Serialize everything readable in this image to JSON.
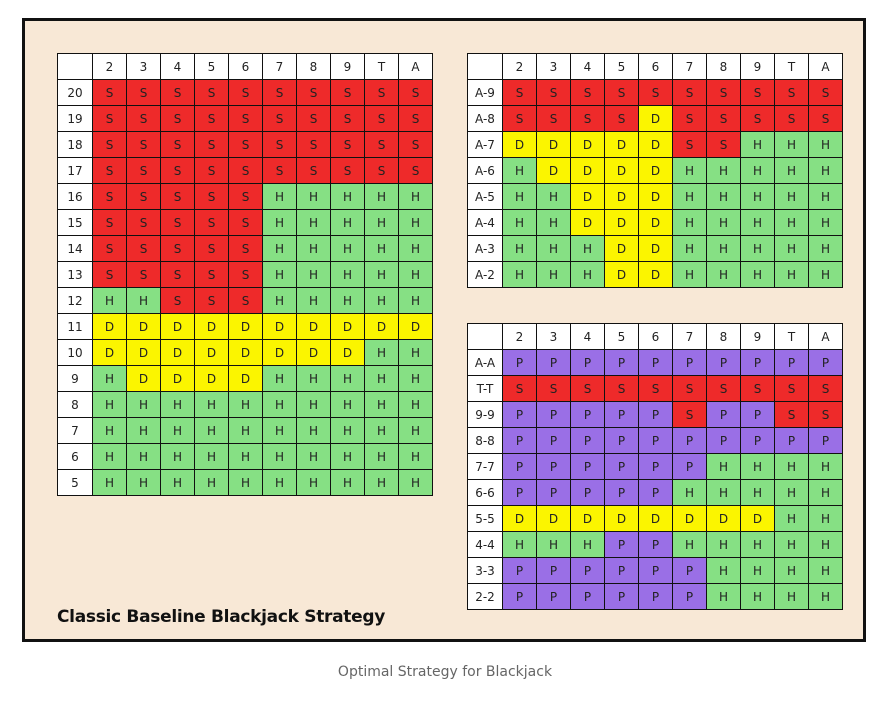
{
  "title": "Classic Baseline Blackjack Strategy",
  "caption": "Optimal Strategy for Blackjack",
  "colors": {
    "S": "#ee2a2a",
    "H": "#86e084",
    "D": "#fbf500",
    "P": "#9a6fe6"
  },
  "dealer_cards": [
    "2",
    "3",
    "4",
    "5",
    "6",
    "7",
    "8",
    "9",
    "T",
    "A"
  ],
  "hard_totals": [
    {
      "hand": "20",
      "actions": [
        "S",
        "S",
        "S",
        "S",
        "S",
        "S",
        "S",
        "S",
        "S",
        "S"
      ]
    },
    {
      "hand": "19",
      "actions": [
        "S",
        "S",
        "S",
        "S",
        "S",
        "S",
        "S",
        "S",
        "S",
        "S"
      ]
    },
    {
      "hand": "18",
      "actions": [
        "S",
        "S",
        "S",
        "S",
        "S",
        "S",
        "S",
        "S",
        "S",
        "S"
      ]
    },
    {
      "hand": "17",
      "actions": [
        "S",
        "S",
        "S",
        "S",
        "S",
        "S",
        "S",
        "S",
        "S",
        "S"
      ]
    },
    {
      "hand": "16",
      "actions": [
        "S",
        "S",
        "S",
        "S",
        "S",
        "H",
        "H",
        "H",
        "H",
        "H"
      ]
    },
    {
      "hand": "15",
      "actions": [
        "S",
        "S",
        "S",
        "S",
        "S",
        "H",
        "H",
        "H",
        "H",
        "H"
      ]
    },
    {
      "hand": "14",
      "actions": [
        "S",
        "S",
        "S",
        "S",
        "S",
        "H",
        "H",
        "H",
        "H",
        "H"
      ]
    },
    {
      "hand": "13",
      "actions": [
        "S",
        "S",
        "S",
        "S",
        "S",
        "H",
        "H",
        "H",
        "H",
        "H"
      ]
    },
    {
      "hand": "12",
      "actions": [
        "H",
        "H",
        "S",
        "S",
        "S",
        "H",
        "H",
        "H",
        "H",
        "H"
      ]
    },
    {
      "hand": "11",
      "actions": [
        "D",
        "D",
        "D",
        "D",
        "D",
        "D",
        "D",
        "D",
        "D",
        "D"
      ]
    },
    {
      "hand": "10",
      "actions": [
        "D",
        "D",
        "D",
        "D",
        "D",
        "D",
        "D",
        "D",
        "H",
        "H"
      ]
    },
    {
      "hand": "9",
      "actions": [
        "H",
        "D",
        "D",
        "D",
        "D",
        "H",
        "H",
        "H",
        "H",
        "H"
      ]
    },
    {
      "hand": "8",
      "actions": [
        "H",
        "H",
        "H",
        "H",
        "H",
        "H",
        "H",
        "H",
        "H",
        "H"
      ]
    },
    {
      "hand": "7",
      "actions": [
        "H",
        "H",
        "H",
        "H",
        "H",
        "H",
        "H",
        "H",
        "H",
        "H"
      ]
    },
    {
      "hand": "6",
      "actions": [
        "H",
        "H",
        "H",
        "H",
        "H",
        "H",
        "H",
        "H",
        "H",
        "H"
      ]
    },
    {
      "hand": "5",
      "actions": [
        "H",
        "H",
        "H",
        "H",
        "H",
        "H",
        "H",
        "H",
        "H",
        "H"
      ]
    }
  ],
  "soft_totals": [
    {
      "hand": "A-9",
      "actions": [
        "S",
        "S",
        "S",
        "S",
        "S",
        "S",
        "S",
        "S",
        "S",
        "S"
      ]
    },
    {
      "hand": "A-8",
      "actions": [
        "S",
        "S",
        "S",
        "S",
        "D",
        "S",
        "S",
        "S",
        "S",
        "S"
      ]
    },
    {
      "hand": "A-7",
      "actions": [
        "D",
        "D",
        "D",
        "D",
        "D",
        "S",
        "S",
        "H",
        "H",
        "H"
      ]
    },
    {
      "hand": "A-6",
      "actions": [
        "H",
        "D",
        "D",
        "D",
        "D",
        "H",
        "H",
        "H",
        "H",
        "H"
      ]
    },
    {
      "hand": "A-5",
      "actions": [
        "H",
        "H",
        "D",
        "D",
        "D",
        "H",
        "H",
        "H",
        "H",
        "H"
      ]
    },
    {
      "hand": "A-4",
      "actions": [
        "H",
        "H",
        "D",
        "D",
        "D",
        "H",
        "H",
        "H",
        "H",
        "H"
      ]
    },
    {
      "hand": "A-3",
      "actions": [
        "H",
        "H",
        "H",
        "D",
        "D",
        "H",
        "H",
        "H",
        "H",
        "H"
      ]
    },
    {
      "hand": "A-2",
      "actions": [
        "H",
        "H",
        "H",
        "D",
        "D",
        "H",
        "H",
        "H",
        "H",
        "H"
      ]
    }
  ],
  "pairs": [
    {
      "hand": "A-A",
      "actions": [
        "P",
        "P",
        "P",
        "P",
        "P",
        "P",
        "P",
        "P",
        "P",
        "P"
      ]
    },
    {
      "hand": "T-T",
      "actions": [
        "S",
        "S",
        "S",
        "S",
        "S",
        "S",
        "S",
        "S",
        "S",
        "S"
      ]
    },
    {
      "hand": "9-9",
      "actions": [
        "P",
        "P",
        "P",
        "P",
        "P",
        "S",
        "P",
        "P",
        "S",
        "S"
      ]
    },
    {
      "hand": "8-8",
      "actions": [
        "P",
        "P",
        "P",
        "P",
        "P",
        "P",
        "P",
        "P",
        "P",
        "P"
      ]
    },
    {
      "hand": "7-7",
      "actions": [
        "P",
        "P",
        "P",
        "P",
        "P",
        "P",
        "H",
        "H",
        "H",
        "H"
      ]
    },
    {
      "hand": "6-6",
      "actions": [
        "P",
        "P",
        "P",
        "P",
        "P",
        "H",
        "H",
        "H",
        "H",
        "H"
      ]
    },
    {
      "hand": "5-5",
      "actions": [
        "D",
        "D",
        "D",
        "D",
        "D",
        "D",
        "D",
        "D",
        "H",
        "H"
      ]
    },
    {
      "hand": "4-4",
      "actions": [
        "H",
        "H",
        "H",
        "P",
        "P",
        "H",
        "H",
        "H",
        "H",
        "H"
      ]
    },
    {
      "hand": "3-3",
      "actions": [
        "P",
        "P",
        "P",
        "P",
        "P",
        "P",
        "H",
        "H",
        "H",
        "H"
      ]
    },
    {
      "hand": "2-2",
      "actions": [
        "P",
        "P",
        "P",
        "P",
        "P",
        "P",
        "H",
        "H",
        "H",
        "H"
      ]
    }
  ]
}
